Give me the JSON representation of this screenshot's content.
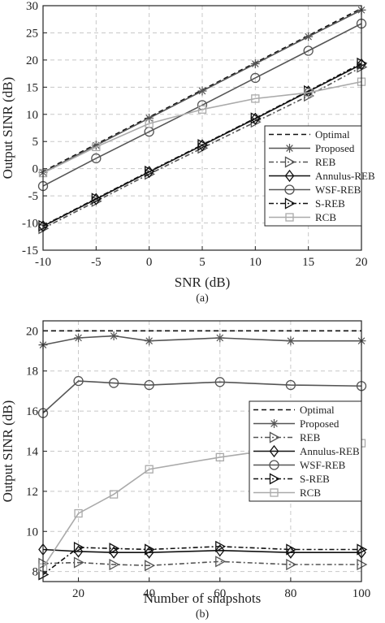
{
  "chart_data": [
    {
      "type": "line",
      "caption": "(a)",
      "xlabel": "SNR (dB)",
      "ylabel": "Output SINR (dB)",
      "xlim": [
        -10,
        20
      ],
      "ylim": [
        -15,
        30
      ],
      "xticks": [
        -10,
        -5,
        0,
        5,
        10,
        15,
        20
      ],
      "yticks": [
        -15,
        -10,
        -5,
        0,
        5,
        10,
        15,
        20,
        25,
        30
      ],
      "grid": true,
      "legend_position": "bottom-right",
      "x": [
        -10,
        -5,
        0,
        5,
        10,
        15,
        20
      ],
      "series": [
        {
          "name": "Optimal",
          "color": "#111111",
          "dash": "6,4",
          "marker": "none",
          "values": [
            -0.5,
            4.5,
            9.5,
            14.5,
            19.5,
            24.5,
            29.5
          ]
        },
        {
          "name": "Proposed",
          "color": "#555555",
          "dash": "",
          "marker": "star",
          "values": [
            -0.7,
            4.3,
            9.3,
            14.3,
            19.3,
            24.3,
            29.2
          ]
        },
        {
          "name": "REB",
          "color": "#555555",
          "dash": "6,3,2,3",
          "marker": "tri-right",
          "values": [
            -11.0,
            -6.0,
            -1.0,
            3.8,
            8.6,
            13.4,
            18.7
          ]
        },
        {
          "name": "Annulus-REB",
          "color": "#111111",
          "dash": "",
          "marker": "diamond",
          "values": [
            -10.6,
            -5.6,
            -0.6,
            4.3,
            9.2,
            14.2,
            19.2
          ]
        },
        {
          "name": "WSF-REB",
          "color": "#555555",
          "dash": "",
          "marker": "circle",
          "values": [
            -3.2,
            1.9,
            6.8,
            11.7,
            16.7,
            21.7,
            26.7
          ]
        },
        {
          "name": "S-REB",
          "color": "#111111",
          "dash": "6,3,2,3",
          "marker": "tri-right",
          "values": [
            -10.5,
            -5.5,
            -0.5,
            4.4,
            9.3,
            14.3,
            19.4
          ]
        },
        {
          "name": "RCB",
          "color": "#aaaaaa",
          "dash": "",
          "marker": "square",
          "values": [
            -0.8,
            4.0,
            8.3,
            10.9,
            12.9,
            14.0,
            16.0
          ]
        }
      ]
    },
    {
      "type": "line",
      "caption": "(b)",
      "xlabel": "Number of snapshots",
      "ylabel": "Output SINR (dB)",
      "xlim": [
        10,
        100
      ],
      "ylim": [
        7.5,
        20.5
      ],
      "xticks": [
        20,
        40,
        60,
        80,
        100
      ],
      "yticks": [
        8,
        10,
        12,
        14,
        16,
        18,
        20
      ],
      "grid": true,
      "legend_position": "right",
      "x": [
        10,
        20,
        30,
        40,
        60,
        80,
        100
      ],
      "series": [
        {
          "name": "Optimal",
          "color": "#111111",
          "dash": "6,4",
          "marker": "none",
          "values": [
            20.0,
            20.0,
            20.0,
            20.0,
            20.0,
            20.0,
            20.0
          ]
        },
        {
          "name": "Proposed",
          "color": "#555555",
          "dash": "",
          "marker": "star",
          "values": [
            19.3,
            19.65,
            19.75,
            19.5,
            19.65,
            19.5,
            19.5
          ]
        },
        {
          "name": "REB",
          "color": "#555555",
          "dash": "6,3,2,3",
          "marker": "tri-right",
          "values": [
            8.4,
            8.45,
            8.35,
            8.3,
            8.5,
            8.35,
            8.35
          ]
        },
        {
          "name": "Annulus-REB",
          "color": "#111111",
          "dash": "",
          "marker": "diamond",
          "values": [
            9.1,
            9.0,
            8.95,
            8.95,
            9.05,
            8.95,
            8.95
          ]
        },
        {
          "name": "WSF-REB",
          "color": "#555555",
          "dash": "",
          "marker": "circle",
          "values": [
            15.9,
            17.5,
            17.4,
            17.3,
            17.45,
            17.3,
            17.25
          ]
        },
        {
          "name": "S-REB",
          "color": "#111111",
          "dash": "6,3,2,3",
          "marker": "tri-right",
          "values": [
            7.85,
            9.2,
            9.15,
            9.1,
            9.25,
            9.1,
            9.1
          ]
        },
        {
          "name": "RCB",
          "color": "#aaaaaa",
          "dash": "",
          "marker": "square",
          "values": [
            8.2,
            10.9,
            11.85,
            13.1,
            13.7,
            14.2,
            14.4
          ]
        }
      ]
    }
  ]
}
